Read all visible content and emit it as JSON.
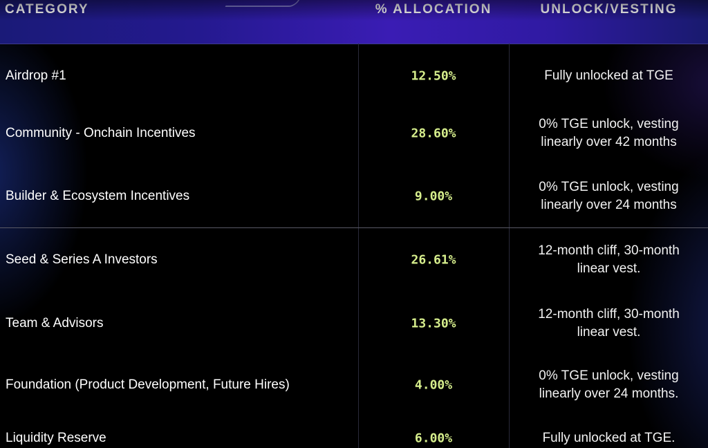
{
  "header": {
    "category": "CATEGORY",
    "allocation": "% ALLOCATION",
    "unlock": "UNLOCK/VESTING"
  },
  "rows": [
    {
      "category": "Airdrop #1",
      "allocation": "12.50%",
      "unlock_line1": "Fully unlocked at TGE",
      "unlock_line2": ""
    },
    {
      "category": "Community - Onchain Incentives",
      "allocation": "28.60%",
      "unlock_line1": "0% TGE unlock, vesting",
      "unlock_line2": "linearly over 42 months"
    },
    {
      "category": "Builder & Ecosystem Incentives",
      "allocation": "9.00%",
      "unlock_line1": "0% TGE unlock, vesting",
      "unlock_line2": "linearly over 24 months"
    },
    {
      "category": "Seed & Series A Investors",
      "allocation": "26.61%",
      "unlock_line1": "12-month cliff, 30-month",
      "unlock_line2": "linear vest."
    },
    {
      "category": "Team & Advisors",
      "allocation": "13.30%",
      "unlock_line1": "12-month cliff, 30-month",
      "unlock_line2": "linear vest."
    },
    {
      "category": "Foundation (Product Development, Future Hires)",
      "allocation": "4.00%",
      "unlock_line1": "0% TGE unlock, vesting",
      "unlock_line2": "linearly over 24 months."
    },
    {
      "category": "Liquidity Reserve",
      "allocation": "6.00%",
      "unlock_line1": "Fully unlocked at TGE.",
      "unlock_line2": ""
    }
  ],
  "colors": {
    "allocation_text": "#d6ee8c",
    "header_gradient_center": "#3a1cb4",
    "background": "#000000"
  }
}
